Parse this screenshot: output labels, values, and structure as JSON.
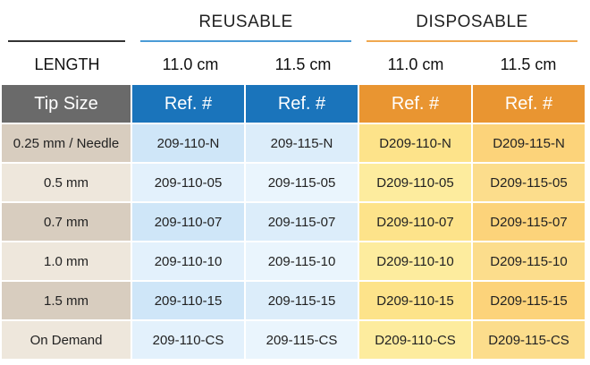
{
  "groups": {
    "reusable": "REUSABLE",
    "disposable": "DISPOSABLE"
  },
  "colors": {
    "reusable_accent": "#1a74bb",
    "disposable_accent": "#e99531"
  },
  "length_row": {
    "label": "LENGTH",
    "reusable_short": "11.0 cm",
    "reusable_long": "11.5 cm",
    "disposable_short": "11.0 cm",
    "disposable_long": "11.5 cm"
  },
  "table": {
    "headers": [
      "Tip Size",
      "Ref. #",
      "Ref. #",
      "Ref. #",
      "Ref. #"
    ],
    "rows": [
      [
        "0.25 mm / Needle",
        "209-110-N",
        "209-115-N",
        "D209-110-N",
        "D209-115-N"
      ],
      [
        "0.5 mm",
        "209-110-05",
        "209-115-05",
        "D209-110-05",
        "D209-115-05"
      ],
      [
        "0.7 mm",
        "209-110-07",
        "209-115-07",
        "D209-110-07",
        "D209-115-07"
      ],
      [
        "1.0 mm",
        "209-110-10",
        "209-115-10",
        "D209-110-10",
        "D209-115-10"
      ],
      [
        "1.5 mm",
        "209-110-15",
        "209-115-15",
        "D209-110-15",
        "D209-115-15"
      ],
      [
        "On Demand",
        "209-110-CS",
        "209-115-CS",
        "D209-110-CS",
        "D209-115-CS"
      ]
    ]
  }
}
